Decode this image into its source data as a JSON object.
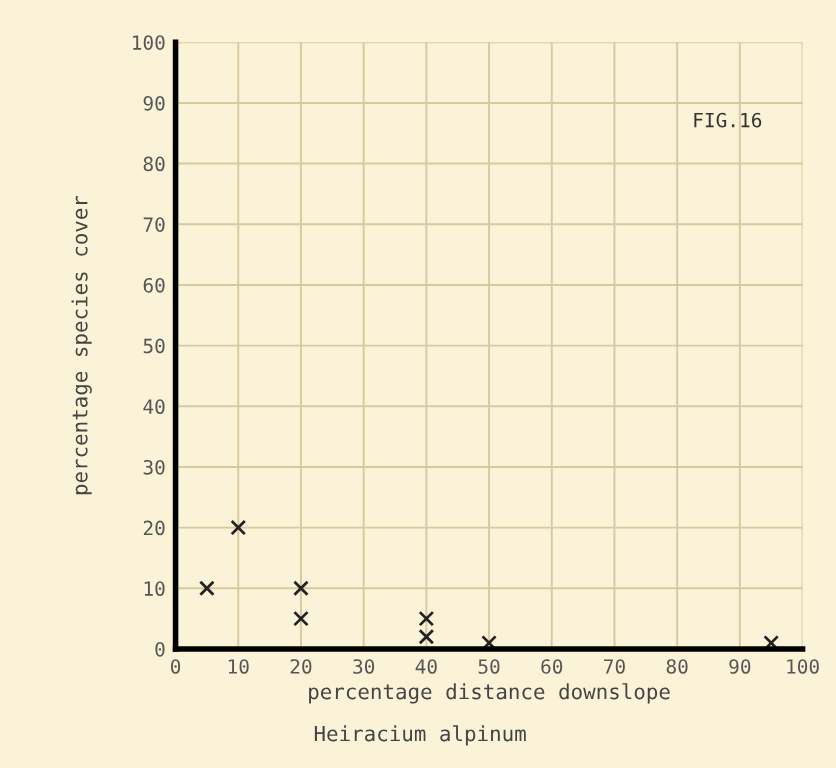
{
  "chart_data": {
    "type": "scatter",
    "title": "Heiracium alpinum",
    "xlabel": "percentage distance downslope",
    "ylabel": "percentage species cover",
    "x": [
      5,
      10,
      20,
      20,
      40,
      40,
      50,
      95
    ],
    "values": [
      10,
      20,
      10,
      5,
      5,
      2,
      1,
      1
    ],
    "color": "#222222",
    "marker": "cross",
    "xlim": [
      0,
      100
    ],
    "ylim": [
      0,
      100
    ],
    "xticks": [
      0,
      10,
      20,
      30,
      40,
      50,
      60,
      70,
      80,
      90,
      100
    ],
    "yticks": [
      0,
      10,
      20,
      30,
      40,
      50,
      60,
      70,
      80,
      90,
      100
    ],
    "grid": true,
    "annotations": [
      "FIG.16"
    ]
  }
}
